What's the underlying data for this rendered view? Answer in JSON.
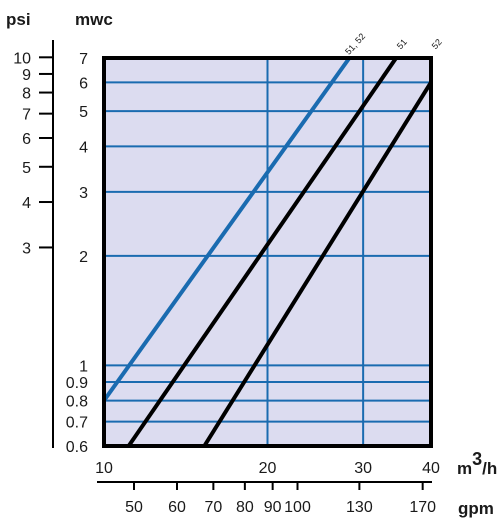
{
  "chart_data": {
    "type": "line",
    "title": "",
    "x_unit_primary": "m³/h",
    "x_unit_primary_base": "m",
    "x_unit_primary_sup": "3",
    "x_unit_primary_tail": "/h",
    "x_unit_secondary": "gpm",
    "y_unit_primary": "mwc",
    "y_unit_secondary": "psi",
    "xlim": [
      10,
      40
    ],
    "ylim": [
      0.6,
      7
    ],
    "x_scale": "log",
    "y_scale": "log",
    "grid": true,
    "plot_background": "#dcdcf0",
    "grid_color": "#1a6bb0",
    "x_ticks": [
      "10",
      "20",
      "30",
      "40"
    ],
    "x_tick_values": [
      10,
      20,
      30,
      40
    ],
    "x_grid_values": [
      20,
      30
    ],
    "y_ticks": [
      "0.6",
      "0.7",
      "0.8",
      "0.9",
      "1",
      "2",
      "3",
      "4",
      "5",
      "6",
      "7"
    ],
    "y_tick_values": [
      0.6,
      0.7,
      0.8,
      0.9,
      1,
      2,
      3,
      4,
      5,
      6,
      7
    ],
    "gpm_ticks": [
      "50",
      "60",
      "70",
      "80",
      "90",
      "100",
      "130",
      "170"
    ],
    "gpm_tick_values": [
      50,
      60,
      70,
      80,
      90,
      100,
      130,
      170
    ],
    "psi_ticks": [
      "3",
      "4",
      "5",
      "6",
      "7",
      "8",
      "9",
      "10"
    ],
    "psi_tick_values": [
      3,
      4,
      5,
      6,
      7,
      8,
      9,
      10
    ],
    "series": [
      {
        "name": "51, 52",
        "color": "#1a6bb0",
        "x": [
          10,
          28.3
        ],
        "y": [
          0.8,
          7
        ]
      },
      {
        "name": "51",
        "color": "#000000",
        "x": [
          11.1,
          34.5
        ],
        "y": [
          0.6,
          7
        ]
      },
      {
        "name": "52",
        "color": "#000000",
        "x": [
          15.3,
          40
        ],
        "y": [
          0.6,
          6
        ]
      }
    ]
  }
}
